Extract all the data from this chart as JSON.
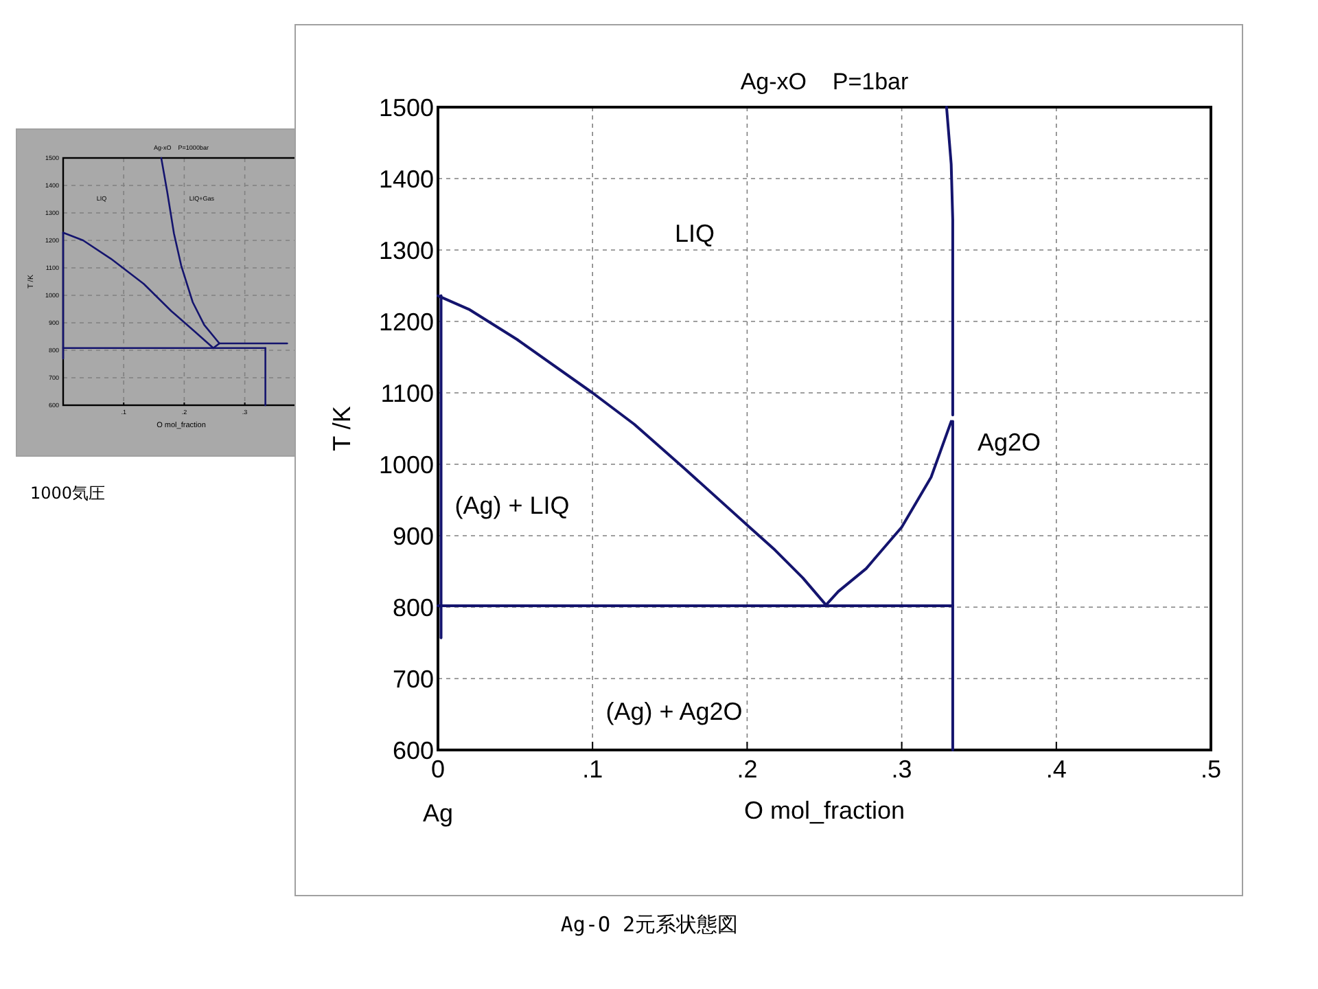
{
  "chart_data": [
    {
      "type": "line",
      "title": "Ag-xO    P=1bar",
      "xlabel": "O mol_fraction",
      "ylabel": "T /K",
      "xlim": [
        0,
        0.5
      ],
      "ylim": [
        600,
        1500
      ],
      "xticks": [
        0,
        {
          "value": 0.1,
          "label": ".1"
        },
        {
          "value": 0.2,
          "label": ".2"
        },
        {
          "value": 0.3,
          "label": ".3"
        },
        {
          "value": 0.4,
          "label": ".4"
        },
        {
          "value": 0.5,
          "label": ".5"
        }
      ],
      "yticks": [
        600,
        700,
        800,
        900,
        1000,
        1100,
        1200,
        1300,
        1400,
        1500
      ],
      "grid": true,
      "series": [
        {
          "color": "#14146e",
          "x": [
            0,
            0.02,
            0.051,
            0.1,
            0.127,
            0.159,
            0.2,
            0.218,
            0.236,
            0.251
          ],
          "values": [
            1236,
            1217,
            1175,
            1100,
            1056,
            995,
            915,
            880,
            841,
            803
          ]
        },
        {
          "color": "#14146e",
          "x": [
            0.251,
            0.259,
            0.277,
            0.3,
            0.319,
            0.332
          ],
          "values": [
            803,
            822,
            854,
            912,
            982,
            1060
          ]
        },
        {
          "color": "#14146e",
          "x": [
            0.329,
            0.332,
            0.333,
            0.333
          ],
          "values": [
            1500,
            1420,
            1342,
            1069
          ]
        },
        {
          "color": "#14146e",
          "x": [
            0.333,
            0.333
          ],
          "values": [
            1060,
            600
          ]
        },
        {
          "color": "#14146e",
          "x": [
            0,
            0.333
          ],
          "values": [
            802,
            802
          ]
        },
        {
          "color": "#14146e",
          "x": [
            0.002,
            0.002
          ],
          "values": [
            1236,
            757
          ]
        }
      ],
      "annotations": [
        "LIQ",
        "(Ag) + LIQ",
        "(Ag) + Ag2O",
        "Ag2O",
        "Ag",
        "Ag-O 2元系状態図"
      ]
    },
    {
      "type": "line",
      "title": "Ag-xO    P=1000bar",
      "xlabel": "O mol_fraction",
      "ylabel": "T /K",
      "xlim": [
        0,
        0.39
      ],
      "ylim": [
        600,
        1500
      ],
      "xticks": [
        {
          "value": 0.1,
          "label": ".1"
        },
        {
          "value": 0.2,
          "label": ".2"
        },
        {
          "value": 0.3,
          "label": ".3"
        }
      ],
      "yticks": [
        600,
        700,
        800,
        900,
        1000,
        1100,
        1200,
        1300,
        1400,
        1500
      ],
      "grid": true,
      "series": [
        {
          "color": "#14146e",
          "x": [
            0,
            0.033,
            0.079,
            0.133,
            0.179,
            0.218,
            0.248
          ],
          "values": [
            1228,
            1200,
            1133,
            1042,
            942,
            867,
            808
          ]
        },
        {
          "color": "#14146e",
          "x": [
            0.162,
            0.172,
            0.183,
            0.195,
            0.214,
            0.233,
            0.258
          ],
          "values": [
            1500,
            1375,
            1225,
            1108,
            975,
            892,
            825
          ]
        },
        {
          "color": "#14146e",
          "x": [
            0.248,
            0.258
          ],
          "values": [
            808,
            825
          ]
        },
        {
          "color": "#14146e",
          "x": [
            0,
            0.334
          ],
          "values": [
            808,
            808
          ]
        },
        {
          "color": "#14146e",
          "x": [
            0.334,
            0.334
          ],
          "values": [
            808,
            600
          ]
        },
        {
          "color": "#14146e",
          "x": [
            0.258,
            0.37
          ],
          "values": [
            825,
            825
          ]
        },
        {
          "color": "#14146e",
          "x": [
            0,
            0
          ],
          "values": [
            1228,
            770
          ]
        }
      ],
      "annotations": [
        "LIQ",
        "LIQ+Gas",
        "1000気圧"
      ]
    }
  ]
}
